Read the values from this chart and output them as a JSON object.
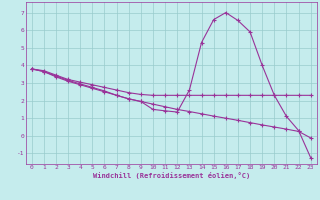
{
  "xlabel": "Windchill (Refroidissement éolien,°C)",
  "bg_color": "#c5eced",
  "line_color": "#993399",
  "grid_color": "#99cccc",
  "xlim": [
    -0.5,
    23.5
  ],
  "ylim": [
    -1.6,
    7.6
  ],
  "xticks": [
    0,
    1,
    2,
    3,
    4,
    5,
    6,
    7,
    8,
    9,
    10,
    11,
    12,
    13,
    14,
    15,
    16,
    17,
    18,
    19,
    20,
    21,
    22,
    23
  ],
  "yticks": [
    -1,
    0,
    1,
    2,
    3,
    4,
    5,
    6,
    7
  ],
  "line1_x": [
    0,
    1,
    2,
    3,
    4,
    5,
    6,
    7,
    8,
    9,
    10,
    11,
    12,
    13,
    14,
    15,
    16,
    17,
    18,
    19,
    20,
    21,
    22,
    23
  ],
  "line1_y": [
    3.8,
    3.65,
    3.35,
    3.1,
    2.9,
    2.7,
    2.5,
    2.3,
    2.1,
    1.95,
    1.8,
    1.65,
    1.5,
    1.38,
    1.25,
    1.12,
    1.0,
    0.88,
    0.75,
    0.62,
    0.5,
    0.38,
    0.25,
    -0.12
  ],
  "line2_x": [
    0,
    1,
    2,
    3,
    4,
    5,
    6,
    7,
    8,
    9,
    10,
    11,
    12,
    13,
    14,
    15,
    16,
    17,
    18,
    19,
    20,
    21,
    22,
    23
  ],
  "line2_y": [
    3.8,
    3.65,
    3.4,
    3.15,
    2.95,
    2.75,
    2.55,
    2.3,
    2.1,
    1.95,
    1.5,
    1.42,
    1.35,
    2.6,
    5.3,
    6.6,
    7.0,
    6.55,
    5.9,
    4.0,
    2.3,
    1.1,
    0.3,
    -1.25
  ],
  "line3_x": [
    0,
    1,
    2,
    3,
    4,
    5,
    6,
    7,
    8,
    9,
    10,
    11,
    12,
    13,
    14,
    15,
    16,
    17,
    18,
    19,
    20,
    21,
    22,
    23
  ],
  "line3_y": [
    3.8,
    3.7,
    3.45,
    3.2,
    3.05,
    2.9,
    2.75,
    2.6,
    2.45,
    2.35,
    2.3,
    2.3,
    2.3,
    2.3,
    2.3,
    2.3,
    2.3,
    2.3,
    2.3,
    2.3,
    2.3,
    2.3,
    2.3,
    2.3
  ]
}
